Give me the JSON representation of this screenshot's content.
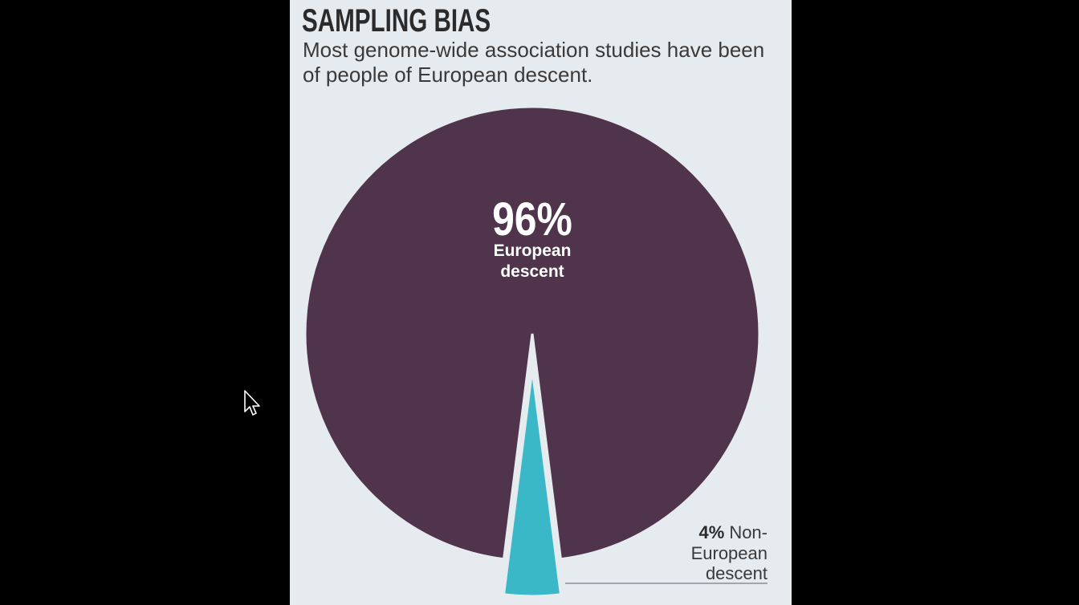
{
  "chart_data": {
    "type": "pie",
    "title": "SAMPLING BIAS",
    "subtitle": "Most genome-wide association studies have been of people of European descent.",
    "slices": [
      {
        "percent_label": "96%",
        "value": 96,
        "label_lines": [
          "European",
          "descent"
        ],
        "color": "#4f344c"
      },
      {
        "percent_label": "4%",
        "value": 4,
        "label_lines": [
          "Non-",
          "European",
          "descent"
        ],
        "color": "#3ab8c8"
      }
    ]
  },
  "colors": {
    "panel_background": "#e6ebef",
    "screen_background": "#000000",
    "callout_line": "#8a9096"
  },
  "cursor": {
    "icon": "mouse-pointer-icon"
  }
}
